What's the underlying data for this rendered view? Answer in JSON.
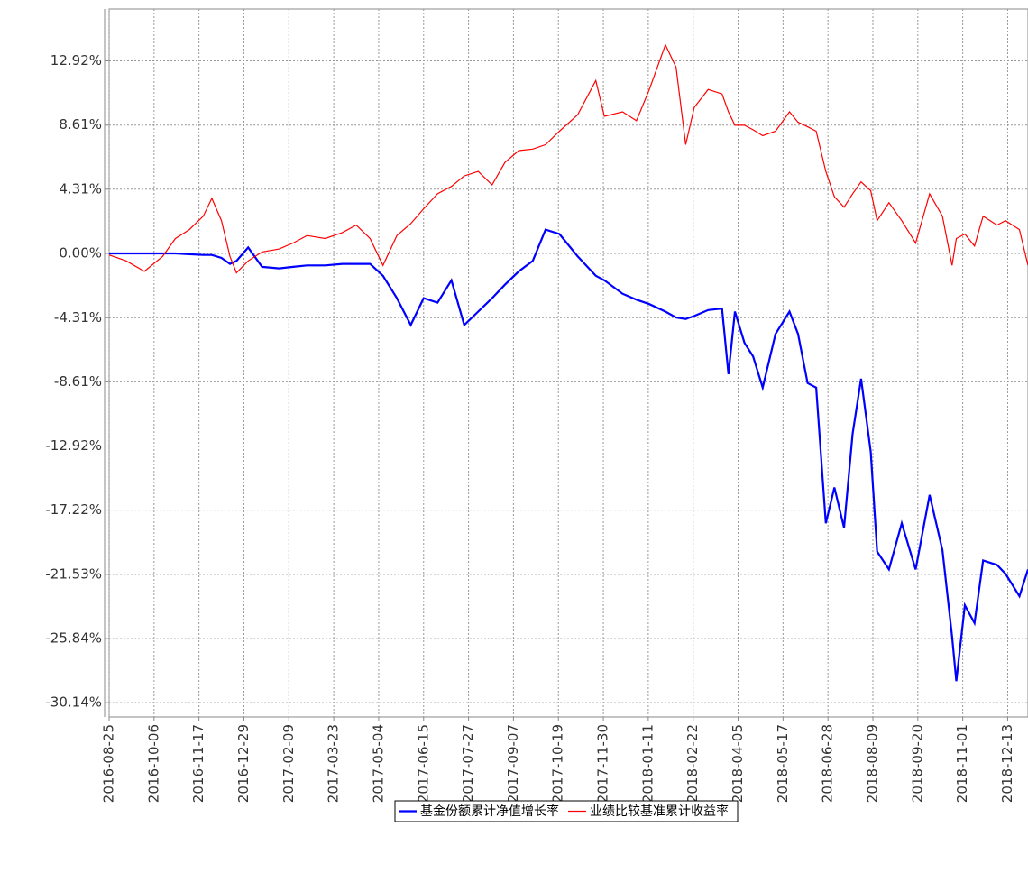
{
  "chart_data": {
    "type": "line",
    "x": [
      "2016-08-25",
      "2016-09-10",
      "2016-09-27",
      "2016-10-14",
      "2016-10-26",
      "2016-11-08",
      "2016-11-21",
      "2016-11-29",
      "2016-12-08",
      "2016-12-16",
      "2016-12-22",
      "2017-01-02",
      "2017-01-15",
      "2017-01-31",
      "2017-02-13",
      "2017-02-26",
      "2017-03-15",
      "2017-03-31",
      "2017-04-13",
      "2017-04-26",
      "2017-05-08",
      "2017-05-21",
      "2017-06-03",
      "2017-06-15",
      "2017-06-28",
      "2017-07-11",
      "2017-07-23",
      "2017-08-05",
      "2017-08-18",
      "2017-08-30",
      "2017-09-12",
      "2017-09-25",
      "2017-10-07",
      "2017-10-20",
      "2017-11-06",
      "2017-11-23",
      "2017-12-01",
      "2017-12-18",
      "2017-12-31",
      "2018-01-12",
      "2018-01-27",
      "2018-02-06",
      "2018-02-15",
      "2018-02-23",
      "2018-03-08",
      "2018-03-21",
      "2018-03-27",
      "2018-04-02",
      "2018-04-11",
      "2018-04-19",
      "2018-04-28",
      "2018-05-10",
      "2018-05-23",
      "2018-05-31",
      "2018-06-09",
      "2018-06-17",
      "2018-06-26",
      "2018-07-04",
      "2018-07-13",
      "2018-07-21",
      "2018-07-29",
      "2018-08-07",
      "2018-08-13",
      "2018-08-24",
      "2018-09-05",
      "2018-09-18",
      "2018-10-01",
      "2018-10-13",
      "2018-10-22",
      "2018-10-26",
      "2018-11-03",
      "2018-11-12",
      "2018-11-20",
      "2018-12-03",
      "2018-12-11",
      "2018-12-24",
      "2019-01-01"
    ],
    "series": [
      {
        "name": "基金份额累计净值增长率",
        "color": "#0000ff",
        "width": 2.2,
        "values": [
          0,
          0,
          0,
          0,
          0,
          -0.05,
          -0.1,
          -0.1,
          -0.3,
          -0.7,
          -0.5,
          0.4,
          -0.9,
          -1.0,
          -0.9,
          -0.8,
          -0.8,
          -0.7,
          -0.7,
          -0.7,
          -1.5,
          -3.0,
          -4.8,
          -3.0,
          -3.3,
          -1.8,
          -4.8,
          -3.9,
          -3.0,
          -2.1,
          -1.2,
          -0.5,
          1.6,
          1.3,
          -0.2,
          -1.5,
          -1.8,
          -2.7,
          -3.1,
          -3.4,
          -3.9,
          -4.3,
          -4.4,
          -4.2,
          -3.8,
          -3.7,
          -8.1,
          -3.9,
          -6.0,
          -6.9,
          -9.0,
          -5.4,
          -3.9,
          -5.4,
          -8.7,
          -9.0,
          -18.1,
          -15.7,
          -18.4,
          -12.1,
          -8.4,
          -13.3,
          -20.0,
          -21.2,
          -18.1,
          -21.2,
          -16.2,
          -19.9,
          -25.7,
          -28.7,
          -23.6,
          -24.8,
          -20.6,
          -20.9,
          -21.5,
          -23.0,
          -21.2
        ]
      },
      {
        "name": "业绩比较基准累计收益率",
        "color": "#ff0000",
        "width": 1.2,
        "values": [
          -0.1,
          -0.5,
          -1.2,
          -0.2,
          1.0,
          1.6,
          2.5,
          3.7,
          2.2,
          -0.2,
          -1.3,
          -0.5,
          0.1,
          0.3,
          0.7,
          1.2,
          1.0,
          1.4,
          1.9,
          1.0,
          -0.8,
          1.2,
          2.0,
          3.0,
          4.0,
          4.5,
          5.2,
          5.5,
          4.6,
          6.1,
          6.9,
          7.0,
          7.3,
          8.2,
          9.3,
          11.6,
          9.2,
          9.5,
          8.9,
          11.0,
          14.0,
          12.5,
          7.3,
          9.8,
          11.0,
          10.7,
          9.5,
          8.6,
          8.6,
          8.3,
          7.9,
          8.2,
          9.5,
          8.8,
          8.5,
          8.2,
          5.5,
          3.8,
          3.1,
          4.0,
          4.8,
          4.2,
          2.2,
          3.4,
          2.2,
          0.7,
          4.0,
          2.5,
          -0.8,
          1.0,
          1.3,
          0.5,
          2.5,
          1.9,
          2.2,
          1.6,
          -0.8
        ]
      }
    ],
    "xlim": [
      "2016-08-25",
      "2019-01-01"
    ],
    "xticks": [
      "2016-08-25",
      "2016-10-06",
      "2016-11-17",
      "2016-12-29",
      "2017-02-09",
      "2017-03-23",
      "2017-05-04",
      "2017-06-15",
      "2017-07-27",
      "2017-09-07",
      "2017-10-19",
      "2017-11-30",
      "2018-01-11",
      "2018-02-22",
      "2018-04-05",
      "2018-05-17",
      "2018-06-28",
      "2018-08-09",
      "2018-09-20",
      "2018-11-01",
      "2018-12-13"
    ],
    "ylim": [
      -31.1,
      16.4
    ],
    "yticks": [
      {
        "value": -30.14,
        "label": "-30.14%"
      },
      {
        "value": -25.84,
        "label": "-25.84%"
      },
      {
        "value": -21.53,
        "label": "-21.53%"
      },
      {
        "value": -17.22,
        "label": "-17.22%"
      },
      {
        "value": -12.92,
        "label": "-12.92%"
      },
      {
        "value": -8.61,
        "label": "-8.61%"
      },
      {
        "value": -4.31,
        "label": "-4.31%"
      },
      {
        "value": 0,
        "label": "0.00%"
      },
      {
        "value": 4.31,
        "label": "4.31%"
      },
      {
        "value": 8.61,
        "label": "8.61%"
      },
      {
        "value": 12.92,
        "label": "12.92%"
      }
    ],
    "grid": true,
    "legend": "bottom"
  }
}
